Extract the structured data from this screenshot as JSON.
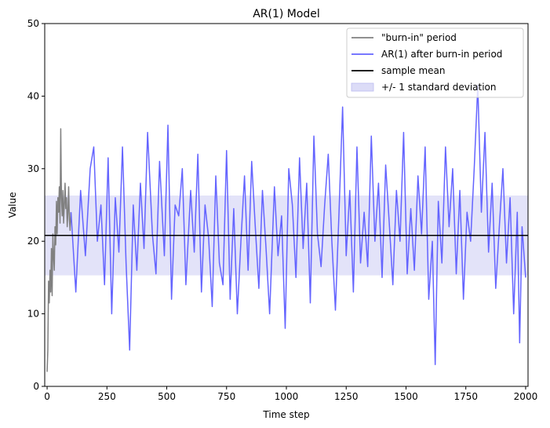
{
  "chart_data": {
    "type": "line",
    "title": "AR(1) Model",
    "xlabel": "Time step",
    "ylabel": "Value",
    "xlim": [
      -10,
      2010
    ],
    "ylim": [
      0,
      50
    ],
    "x_ticks": [
      0,
      250,
      500,
      750,
      1000,
      1250,
      1500,
      1750,
      2000
    ],
    "y_ticks": [
      0,
      10,
      20,
      30,
      40,
      50
    ],
    "grid": false,
    "legend_position": "top-right",
    "sample_mean": 20.8,
    "std_band": [
      15.3,
      26.3
    ],
    "series": [
      {
        "name": "\"burn-in\" period",
        "color": "#808080",
        "x": [
          0,
          3,
          6,
          9,
          12,
          15,
          18,
          21,
          24,
          27,
          30,
          33,
          36,
          39,
          42,
          45,
          48,
          51,
          54,
          57,
          60,
          63,
          66,
          69,
          72,
          75,
          78,
          81,
          84,
          87,
          90,
          93,
          96,
          99
        ],
        "y": [
          2.0,
          5.0,
          14.5,
          11.5,
          16.0,
          13.0,
          19.0,
          12.5,
          21.0,
          18.0,
          16.0,
          22.0,
          19.5,
          25.5,
          21.0,
          26.0,
          24.0,
          27.5,
          22.5,
          35.5,
          26.0,
          23.5,
          27.0,
          22.5,
          25.0,
          28.0,
          24.5,
          26.0,
          22.0,
          24.0,
          27.5,
          23.0,
          21.5,
          24.0
        ]
      },
      {
        "name": "AR(1) after burn-in period",
        "color": "#6464ff",
        "x": [
          100,
          120,
          140,
          160,
          180,
          195,
          210,
          225,
          240,
          255,
          270,
          285,
          300,
          315,
          330,
          345,
          360,
          375,
          390,
          405,
          420,
          440,
          455,
          470,
          490,
          505,
          520,
          535,
          550,
          565,
          580,
          600,
          615,
          630,
          645,
          660,
          675,
          690,
          705,
          720,
          735,
          750,
          765,
          780,
          795,
          810,
          825,
          840,
          855,
          870,
          885,
          900,
          915,
          930,
          950,
          965,
          980,
          995,
          1010,
          1025,
          1040,
          1055,
          1070,
          1085,
          1100,
          1115,
          1130,
          1145,
          1160,
          1175,
          1190,
          1205,
          1220,
          1235,
          1250,
          1265,
          1280,
          1295,
          1310,
          1325,
          1340,
          1355,
          1370,
          1385,
          1400,
          1415,
          1430,
          1445,
          1460,
          1475,
          1490,
          1505,
          1520,
          1535,
          1550,
          1565,
          1580,
          1595,
          1610,
          1622,
          1635,
          1650,
          1665,
          1680,
          1695,
          1710,
          1725,
          1740,
          1755,
          1770,
          1785,
          1800,
          1815,
          1830,
          1845,
          1860,
          1875,
          1890,
          1905,
          1920,
          1935,
          1950,
          1965,
          1975,
          1985,
          2000
        ],
        "y": [
          24.0,
          13.0,
          27.0,
          18.0,
          30.0,
          33.0,
          20.0,
          25.0,
          14.0,
          31.5,
          10.0,
          26.0,
          18.5,
          33.0,
          17.0,
          5.0,
          25.0,
          16.0,
          28.0,
          19.0,
          35.0,
          21.0,
          15.5,
          31.0,
          18.0,
          36.0,
          12.0,
          25.0,
          23.5,
          30.0,
          14.0,
          27.0,
          18.5,
          32.0,
          13.0,
          25.0,
          20.5,
          11.0,
          29.0,
          17.0,
          14.0,
          32.5,
          12.0,
          24.5,
          10.0,
          20.0,
          29.0,
          16.0,
          31.0,
          22.0,
          13.5,
          27.0,
          19.0,
          10.0,
          27.5,
          18.0,
          23.5,
          8.0,
          30.0,
          25.0,
          15.0,
          31.5,
          19.0,
          28.0,
          11.5,
          34.5,
          21.0,
          16.5,
          25.0,
          32.0,
          20.0,
          10.5,
          24.0,
          38.5,
          18.0,
          27.0,
          13.0,
          33.0,
          17.0,
          24.0,
          16.5,
          34.5,
          20.0,
          28.0,
          15.0,
          30.5,
          22.5,
          14.0,
          27.0,
          20.0,
          35.0,
          15.5,
          24.5,
          16.0,
          29.0,
          21.0,
          33.0,
          12.0,
          20.0,
          3.0,
          25.5,
          17.0,
          33.0,
          22.0,
          30.0,
          15.5,
          27.0,
          12.0,
          24.0,
          20.0,
          30.0,
          41.5,
          24.0,
          35.0,
          18.5,
          28.0,
          13.5,
          22.0,
          30.0,
          17.0,
          26.0,
          10.0,
          24.0,
          6.0,
          22.0,
          15.0
        ]
      }
    ],
    "legend": [
      {
        "label": "\"burn-in\" period",
        "kind": "line",
        "color": "#808080"
      },
      {
        "label": "AR(1) after burn-in period",
        "kind": "line",
        "color": "#6464ff"
      },
      {
        "label": "sample mean",
        "kind": "line",
        "color": "#000000"
      },
      {
        "label": "+/- 1 standard deviation",
        "kind": "patch",
        "color": "#dcdcf7"
      }
    ]
  }
}
